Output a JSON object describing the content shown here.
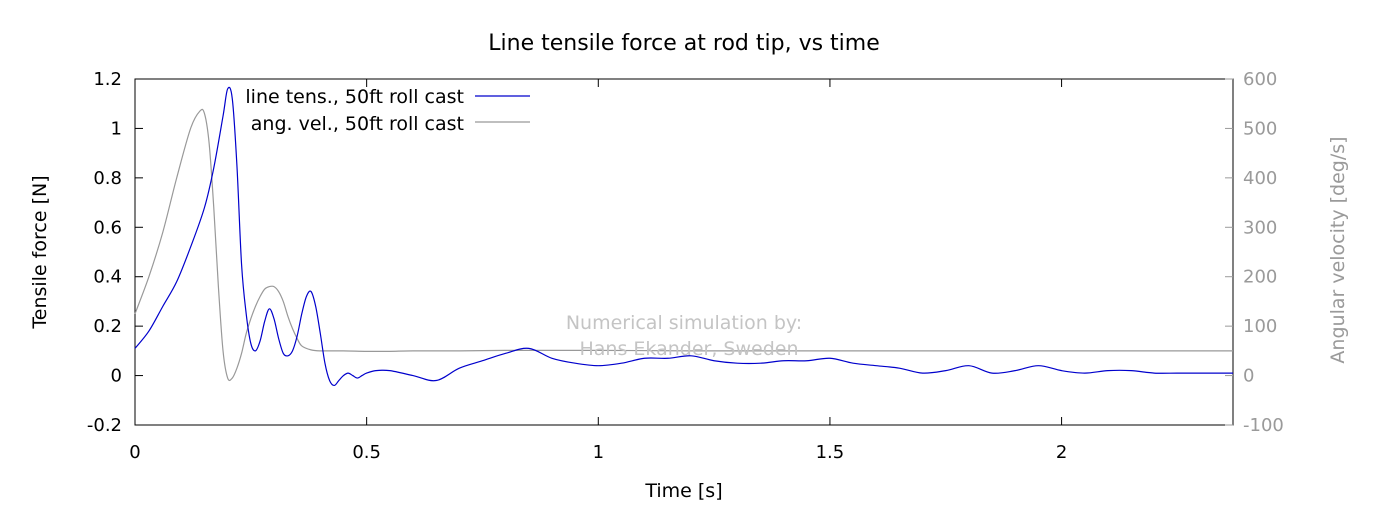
{
  "chart_data": {
    "type": "line",
    "title": "Line tensile force at rod tip, vs time",
    "xlabel": "Time [s]",
    "ylabel": "Tensile force [N]",
    "y2label": "Angular velocity [deg/s]",
    "xlim": [
      0,
      2.37
    ],
    "ylim": [
      -0.2,
      1.2
    ],
    "y2lim": [
      -100,
      600
    ],
    "xticks": [
      "0",
      "0.5",
      "1",
      "1.5",
      "2"
    ],
    "xtick_values": [
      0,
      0.5,
      1,
      1.5,
      2
    ],
    "yticks": [
      "-0.2",
      "0",
      "0.2",
      "0.4",
      "0.6",
      "0.8",
      "1",
      "1.2"
    ],
    "ytick_values": [
      -0.2,
      0,
      0.2,
      0.4,
      0.6,
      0.8,
      1,
      1.2
    ],
    "y2ticks": [
      "-100",
      "0",
      "100",
      "200",
      "300",
      "400",
      "500",
      "600"
    ],
    "y2tick_values": [
      -100,
      0,
      100,
      200,
      300,
      400,
      500,
      600
    ],
    "grid": false,
    "legend_position": "top-left",
    "annotation": [
      "Numerical simulation by:",
      "Hans Ekander, Sweden"
    ],
    "series": [
      {
        "name": "line tens., 50ft roll cast",
        "axis": "left",
        "color": "#0000cc",
        "x": [
          0,
          0.03,
          0.06,
          0.09,
          0.12,
          0.15,
          0.17,
          0.19,
          0.2,
          0.21,
          0.22,
          0.23,
          0.24,
          0.25,
          0.26,
          0.27,
          0.28,
          0.29,
          0.3,
          0.31,
          0.32,
          0.33,
          0.34,
          0.35,
          0.36,
          0.37,
          0.38,
          0.39,
          0.4,
          0.41,
          0.42,
          0.43,
          0.44,
          0.45,
          0.46,
          0.47,
          0.48,
          0.49,
          0.5,
          0.52,
          0.55,
          0.6,
          0.65,
          0.7,
          0.75,
          0.8,
          0.85,
          0.9,
          0.95,
          1.0,
          1.05,
          1.1,
          1.15,
          1.2,
          1.25,
          1.3,
          1.35,
          1.4,
          1.45,
          1.5,
          1.55,
          1.6,
          1.65,
          1.7,
          1.75,
          1.8,
          1.85,
          1.9,
          1.95,
          2.0,
          2.05,
          2.1,
          2.15,
          2.2,
          2.25,
          2.3,
          2.37
        ],
        "y": [
          0.11,
          0.18,
          0.28,
          0.38,
          0.52,
          0.68,
          0.84,
          1.05,
          1.16,
          1.12,
          0.85,
          0.45,
          0.25,
          0.13,
          0.1,
          0.14,
          0.22,
          0.27,
          0.23,
          0.15,
          0.09,
          0.08,
          0.1,
          0.16,
          0.25,
          0.32,
          0.34,
          0.28,
          0.17,
          0.05,
          -0.02,
          -0.04,
          -0.02,
          0.0,
          0.01,
          0.0,
          -0.01,
          0.0,
          0.01,
          0.02,
          0.02,
          0.0,
          -0.02,
          0.03,
          0.06,
          0.09,
          0.11,
          0.07,
          0.05,
          0.04,
          0.05,
          0.07,
          0.07,
          0.08,
          0.06,
          0.05,
          0.05,
          0.06,
          0.06,
          0.07,
          0.05,
          0.04,
          0.03,
          0.01,
          0.02,
          0.04,
          0.01,
          0.02,
          0.04,
          0.02,
          0.01,
          0.02,
          0.02,
          0.01,
          0.01,
          0.01,
          0.01
        ]
      },
      {
        "name": "ang. vel., 50ft roll cast",
        "axis": "right",
        "color": "#999999",
        "x": [
          0,
          0.03,
          0.06,
          0.09,
          0.12,
          0.14,
          0.15,
          0.16,
          0.17,
          0.18,
          0.19,
          0.2,
          0.21,
          0.22,
          0.23,
          0.24,
          0.25,
          0.26,
          0.27,
          0.28,
          0.29,
          0.3,
          0.31,
          0.32,
          0.33,
          0.34,
          0.35,
          0.36,
          0.38,
          0.4,
          0.45,
          0.5,
          0.55,
          0.6,
          0.7,
          0.8,
          0.9,
          1.0,
          1.2,
          1.5,
          1.8,
          2.1,
          2.37
        ],
        "y": [
          125,
          200,
          290,
          400,
          500,
          535,
          530,
          470,
          340,
          180,
          50,
          -5,
          -5,
          15,
          45,
          85,
          115,
          140,
          160,
          175,
          180,
          180,
          170,
          150,
          120,
          95,
          75,
          60,
          52,
          50,
          50,
          49,
          49,
          50,
          50,
          51,
          51,
          51,
          50,
          50,
          50,
          50,
          50
        ]
      }
    ]
  }
}
